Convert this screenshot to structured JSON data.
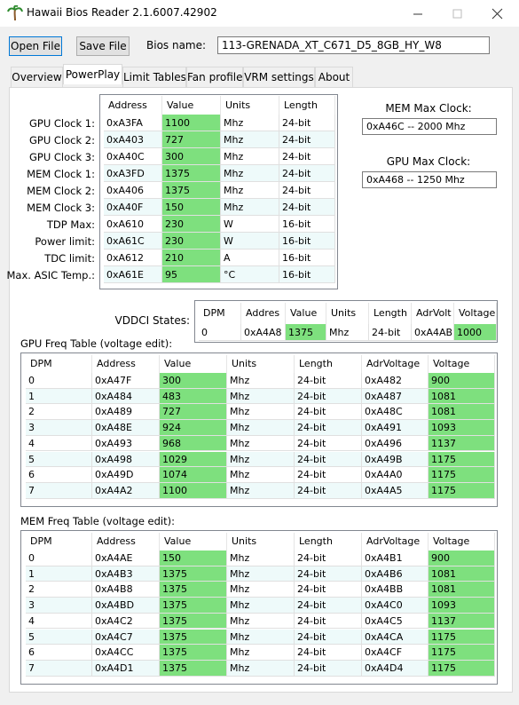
{
  "window": {
    "title": "Hawaii Bios Reader 2.1.6007.42902"
  },
  "toolbar": {
    "open_file": "Open File",
    "save_file": "Save File",
    "bios_name_label": "Bios name:",
    "bios_name": "113-GRENADA_XT_C671_D5_8GB_HY_W8"
  },
  "tabs": [
    "Overview",
    "PowerPlay",
    "Limit Tables",
    "Fan profile",
    "VRM settings",
    "About"
  ],
  "powerplay": {
    "columns": [
      "Address",
      "Value",
      "Units",
      "Length"
    ],
    "rows": [
      {
        "label": "GPU Clock 1:",
        "cells": [
          "0xA3FA",
          "1100",
          "Mhz",
          "24-bit"
        ]
      },
      {
        "label": "GPU Clock 2:",
        "cells": [
          "0xA403",
          "727",
          "Mhz",
          "24-bit"
        ]
      },
      {
        "label": "GPU Clock 3:",
        "cells": [
          "0xA40C",
          "300",
          "Mhz",
          "24-bit"
        ]
      },
      {
        "label": "MEM Clock 1:",
        "cells": [
          "0xA3FD",
          "1375",
          "Mhz",
          "24-bit"
        ]
      },
      {
        "label": "MEM Clock 2:",
        "cells": [
          "0xA406",
          "1375",
          "Mhz",
          "24-bit"
        ]
      },
      {
        "label": "MEM Clock 3:",
        "cells": [
          "0xA40F",
          "150",
          "Mhz",
          "24-bit"
        ]
      },
      {
        "label": "TDP Max:",
        "cells": [
          "0xA610",
          "230",
          "W",
          "16-bit"
        ]
      },
      {
        "label": "Power limit:",
        "cells": [
          "0xA61C",
          "230",
          "W",
          "16-bit"
        ]
      },
      {
        "label": "TDC limit:",
        "cells": [
          "0xA612",
          "210",
          "A",
          "16-bit"
        ]
      },
      {
        "label": "Max. ASIC Temp.:",
        "cells": [
          "0xA61E",
          "95",
          "°C",
          "16-bit"
        ]
      }
    ]
  },
  "mem_max_clock": {
    "label": "MEM Max Clock:",
    "value": "0xA46C -- 2000 Mhz"
  },
  "gpu_max_clock": {
    "label": "GPU Max Clock:",
    "value": "0xA468 -- 1250 Mhz"
  },
  "vddci": {
    "label": "VDDCI States:",
    "columns": [
      "DPM",
      "Addres",
      "Value",
      "Units",
      "Length",
      "AdrVolt",
      "Voltage"
    ],
    "rows": [
      [
        "0",
        "0xA4A8",
        "1375",
        "Mhz",
        "24-bit",
        "0xA4AB",
        "1000"
      ]
    ]
  },
  "gpu_freq": {
    "title": "GPU Freq Table (voltage edit):",
    "columns": [
      "DPM",
      "Address",
      "Value",
      "Units",
      "Length",
      "AdrVoltage",
      "Voltage"
    ],
    "rows": [
      [
        "0",
        "0xA47F",
        "300",
        "Mhz",
        "24-bit",
        "0xA482",
        "900"
      ],
      [
        "1",
        "0xA484",
        "483",
        "Mhz",
        "24-bit",
        "0xA487",
        "1081"
      ],
      [
        "2",
        "0xA489",
        "727",
        "Mhz",
        "24-bit",
        "0xA48C",
        "1081"
      ],
      [
        "3",
        "0xA48E",
        "924",
        "Mhz",
        "24-bit",
        "0xA491",
        "1093"
      ],
      [
        "4",
        "0xA493",
        "968",
        "Mhz",
        "24-bit",
        "0xA496",
        "1137"
      ],
      [
        "5",
        "0xA498",
        "1029",
        "Mhz",
        "24-bit",
        "0xA49B",
        "1175"
      ],
      [
        "6",
        "0xA49D",
        "1074",
        "Mhz",
        "24-bit",
        "0xA4A0",
        "1175"
      ],
      [
        "7",
        "0xA4A2",
        "1100",
        "Mhz",
        "24-bit",
        "0xA4A5",
        "1175"
      ]
    ]
  },
  "mem_freq": {
    "title": "MEM Freq Table (voltage edit):",
    "columns": [
      "DPM",
      "Address",
      "Value",
      "Units",
      "Length",
      "AdrVoltage",
      "Voltage"
    ],
    "rows": [
      [
        "0",
        "0xA4AE",
        "150",
        "Mhz",
        "24-bit",
        "0xA4B1",
        "900"
      ],
      [
        "1",
        "0xA4B3",
        "1375",
        "Mhz",
        "24-bit",
        "0xA4B6",
        "1081"
      ],
      [
        "2",
        "0xA4B8",
        "1375",
        "Mhz",
        "24-bit",
        "0xA4BB",
        "1081"
      ],
      [
        "3",
        "0xA4BD",
        "1375",
        "Mhz",
        "24-bit",
        "0xA4C0",
        "1093"
      ],
      [
        "4",
        "0xA4C2",
        "1375",
        "Mhz",
        "24-bit",
        "0xA4C5",
        "1137"
      ],
      [
        "5",
        "0xA4C7",
        "1375",
        "Mhz",
        "24-bit",
        "0xA4CA",
        "1175"
      ],
      [
        "6",
        "0xA4CC",
        "1375",
        "Mhz",
        "24-bit",
        "0xA4CF",
        "1175"
      ],
      [
        "7",
        "0xA4D1",
        "1375",
        "Mhz",
        "24-bit",
        "0xA4D4",
        "1175"
      ]
    ]
  }
}
